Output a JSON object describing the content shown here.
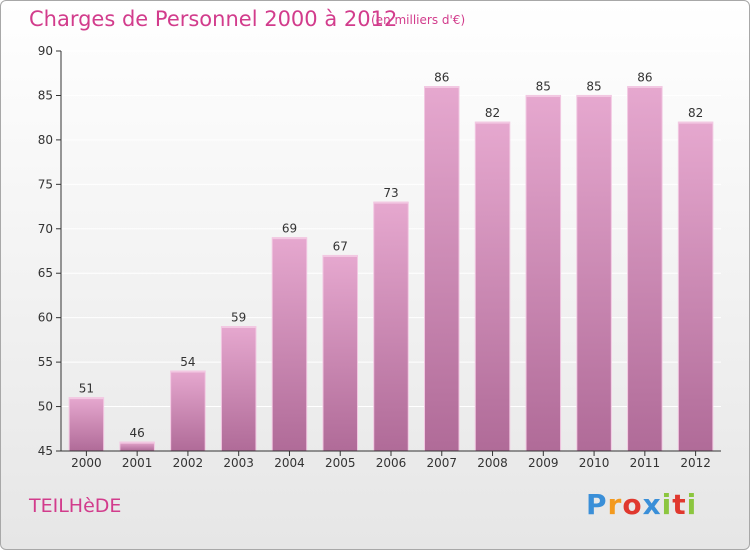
{
  "header": {
    "title": "Charges de Personnel 2000 à 2012",
    "subtitle": "(en milliers d'€)"
  },
  "footer": {
    "commune": "TEILHèDE",
    "brand": {
      "letters": [
        "P",
        "r",
        "o",
        "x",
        "i",
        "t",
        "i"
      ],
      "colors": [
        "#3a8fd8",
        "#f39a1e",
        "#e0382e",
        "#3a8fd8",
        "#8cc63f",
        "#e0382e",
        "#8cc63f"
      ]
    }
  },
  "colors": {
    "bar_light": "#e6a8cf",
    "bar_dark": "#b06b98",
    "bar_top": "#f2c8e2",
    "grid": "#ffffff",
    "axis": "#333333"
  },
  "chart_data": {
    "type": "bar",
    "categories": [
      "2000",
      "2001",
      "2002",
      "2003",
      "2004",
      "2005",
      "2006",
      "2007",
      "2008",
      "2009",
      "2010",
      "2011",
      "2012"
    ],
    "values": [
      51,
      46,
      54,
      59,
      69,
      67,
      73,
      86,
      82,
      85,
      85,
      86,
      82
    ],
    "title": "Charges de Personnel 2000 à 2012",
    "subtitle": "(en milliers d'€)",
    "ylim": [
      45,
      90
    ],
    "yticks": [
      45,
      50,
      55,
      60,
      65,
      70,
      75,
      80,
      85,
      90
    ],
    "grid": true,
    "data_labels": true
  }
}
